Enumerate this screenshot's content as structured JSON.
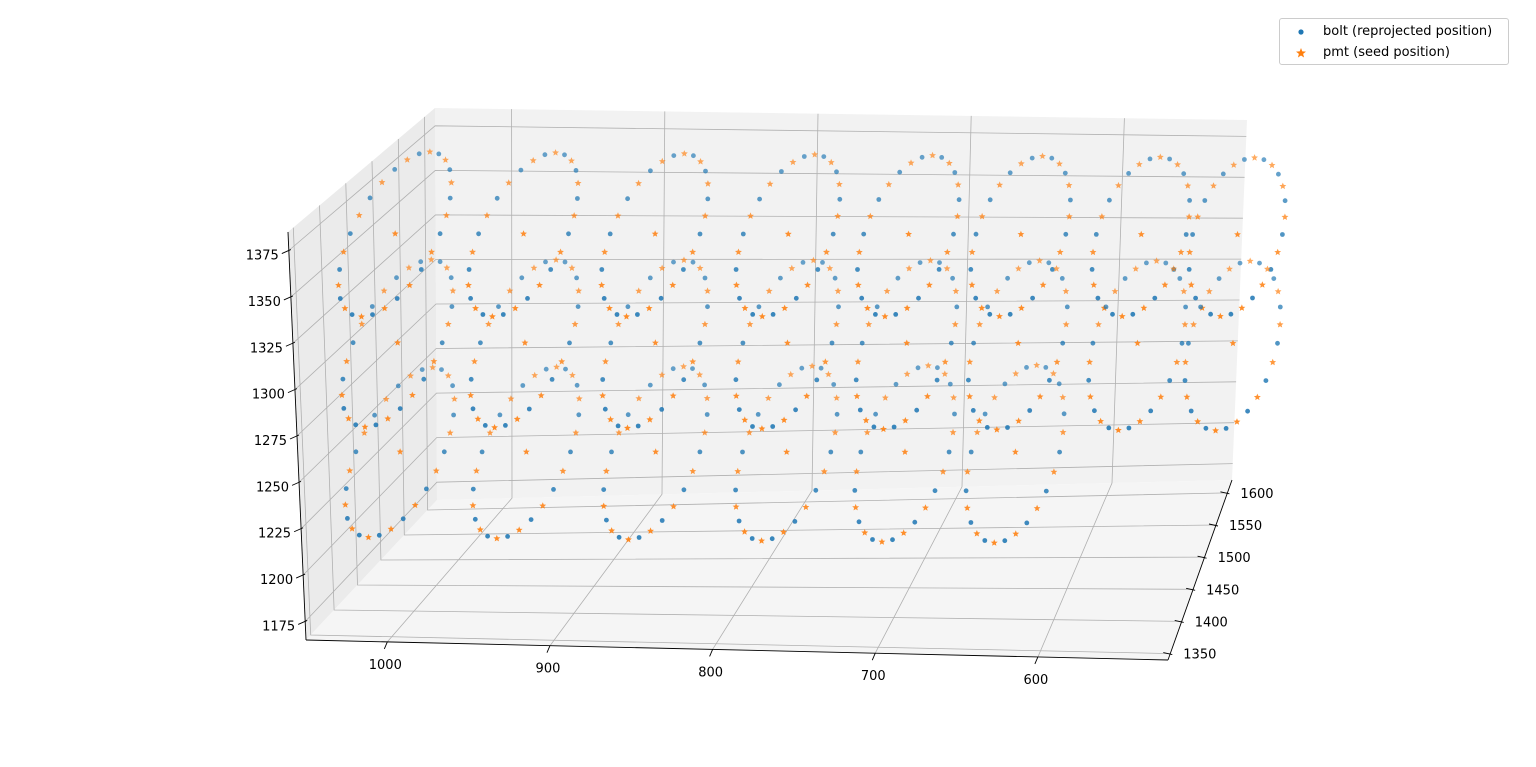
{
  "chart_data": {
    "type": "scatter",
    "projection": "3d",
    "title": "",
    "xlabel": "",
    "ylabel": "",
    "zlabel": "",
    "x_axis": {
      "ticks": [
        1000,
        900,
        800,
        700,
        600
      ],
      "labels": [
        "1000",
        "900",
        "800",
        "700",
        "600"
      ],
      "range": [
        1050,
        520
      ]
    },
    "y_axis": {
      "ticks": [
        1350,
        1400,
        1450,
        1500,
        1550,
        1600
      ],
      "labels": [
        "1350",
        "1400",
        "1450",
        "1500",
        "1550",
        "1600"
      ],
      "range": [
        1340,
        1620
      ]
    },
    "z_axis": {
      "ticks": [
        1175,
        1200,
        1225,
        1250,
        1275,
        1300,
        1325,
        1350,
        1375
      ],
      "labels": [
        "1175",
        "1200",
        "1225",
        "1250",
        "1275",
        "1300",
        "1325",
        "1350",
        "1375"
      ],
      "range": [
        1165,
        1385
      ]
    },
    "grid": true,
    "legend_position": "top-right",
    "series": [
      {
        "name": "bolt (reprojected position)",
        "marker": "circle",
        "color": "#1f77b4"
      },
      {
        "name": "pmt (seed position)",
        "marker": "star",
        "color": "#ff7f0e"
      }
    ],
    "rings": [
      {
        "x": 1030,
        "z": 1350,
        "r": 28
      },
      {
        "x": 1030,
        "z": 1290,
        "r": 28
      },
      {
        "x": 1030,
        "z": 1230,
        "r": 28
      },
      {
        "x": 950,
        "z": 1350,
        "r": 28
      },
      {
        "x": 950,
        "z": 1290,
        "r": 28
      },
      {
        "x": 950,
        "z": 1230,
        "r": 28
      },
      {
        "x": 868,
        "z": 1350,
        "r": 28
      },
      {
        "x": 868,
        "z": 1290,
        "r": 28
      },
      {
        "x": 868,
        "z": 1230,
        "r": 28
      },
      {
        "x": 785,
        "z": 1350,
        "r": 28
      },
      {
        "x": 785,
        "z": 1290,
        "r": 28
      },
      {
        "x": 785,
        "z": 1230,
        "r": 28
      },
      {
        "x": 710,
        "z": 1350,
        "r": 28
      },
      {
        "x": 710,
        "z": 1290,
        "r": 28
      },
      {
        "x": 710,
        "z": 1230,
        "r": 28
      },
      {
        "x": 640,
        "z": 1350,
        "r": 28
      },
      {
        "x": 640,
        "z": 1290,
        "r": 28
      },
      {
        "x": 640,
        "z": 1230,
        "r": 28
      },
      {
        "x": 565,
        "z": 1350,
        "r": 28
      },
      {
        "x": 565,
        "z": 1290,
        "r": 28
      },
      {
        "x": 505,
        "z": 1350,
        "r": 28
      },
      {
        "x": 505,
        "z": 1290,
        "r": 28
      }
    ]
  }
}
